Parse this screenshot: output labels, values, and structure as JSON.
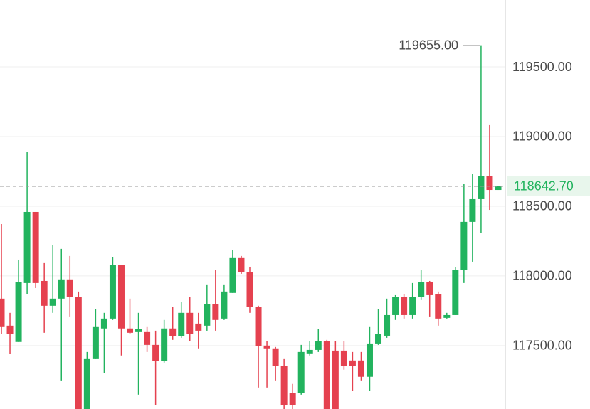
{
  "chart_data": {
    "type": "candlestick",
    "open": [
      117837,
      117643,
      117526,
      117949,
      118459,
      117964,
      117786,
      117837,
      117975,
      117847,
      117040,
      117403,
      117623,
      117694,
      118077,
      117623,
      117597,
      117597,
      117505,
      117388,
      117623,
      117566,
      117735,
      117658,
      117643,
      117796,
      117694,
      117878,
      118128,
      118026,
      117776,
      117500,
      117480,
      117352,
      117158,
      117158,
      117444,
      117469,
      117531,
      117464,
      117464,
      117393,
      117393,
      117276,
      117515,
      117571,
      117719,
      117847,
      117719,
      117847,
      117954,
      117867,
      117699,
      117719,
      118041,
      118388,
      118551,
      118719,
      118617
    ],
    "high": [
      118372,
      117735,
      118117,
      118893,
      118459,
      118092,
      118219,
      118194,
      118143,
      117888,
      117454,
      117760,
      117735,
      118133,
      118077,
      117837,
      117735,
      117633,
      117607,
      117684,
      117776,
      117811,
      117847,
      117735,
      117939,
      118041,
      117939,
      118184,
      118143,
      118066,
      117786,
      117531,
      117490,
      117403,
      117225,
      117505,
      117531,
      117617,
      117541,
      117531,
      117531,
      117454,
      117454,
      117633,
      117760,
      117837,
      117862,
      117872,
      117949,
      118041,
      117964,
      117888,
      117735,
      118061,
      118663,
      118730,
      119655,
      119082,
      118643
    ],
    "low": [
      117582,
      117439,
      117526,
      117872,
      117913,
      117592,
      117735,
      117250,
      117709,
      117000,
      117000,
      117403,
      117301,
      117684,
      117429,
      117582,
      117148,
      117454,
      117072,
      117378,
      117541,
      117556,
      117531,
      117480,
      117607,
      117607,
      117684,
      117878,
      118015,
      117735,
      117199,
      117199,
      117250,
      117000,
      117000,
      117148,
      117429,
      117454,
      117000,
      117000,
      117327,
      117174,
      117250,
      117174,
      117505,
      117556,
      117684,
      117694,
      117694,
      117827,
      117709,
      117643,
      117694,
      117719,
      117949,
      118102,
      118311,
      118474,
      118617
    ],
    "close": [
      117633,
      117582,
      117954,
      118459,
      117949,
      117786,
      117837,
      117975,
      117847,
      117040,
      117403,
      117633,
      117694,
      118077,
      117623,
      117592,
      117617,
      117505,
      117388,
      117623,
      117566,
      117735,
      117582,
      117607,
      117796,
      117684,
      117888,
      118128,
      118026,
      117776,
      117495,
      117480,
      117352,
      117072,
      117072,
      117454,
      117469,
      117531,
      117030,
      117030,
      117352,
      117352,
      117276,
      117515,
      117582,
      117719,
      117847,
      117719,
      117847,
      117954,
      117862,
      117694,
      117719,
      118041,
      118388,
      118551,
      118719,
      118617,
      118642.7
    ],
    "up_color": "#22b35e",
    "down_color": "#e5414f",
    "ylim": [
      117045,
      119980
    ],
    "yticks": [
      {
        "value": 117500,
        "label": "117500.00"
      },
      {
        "value": 118000,
        "label": "118000.00"
      },
      {
        "value": 118500,
        "label": "118500.00"
      },
      {
        "value": 119000,
        "label": "119000.00"
      },
      {
        "value": 119500,
        "label": "119500.00"
      }
    ],
    "grid": true,
    "last_price": {
      "value": 118642.7,
      "label": "118642.70"
    },
    "max_price": {
      "value": 119655,
      "label": "119655.00"
    }
  }
}
